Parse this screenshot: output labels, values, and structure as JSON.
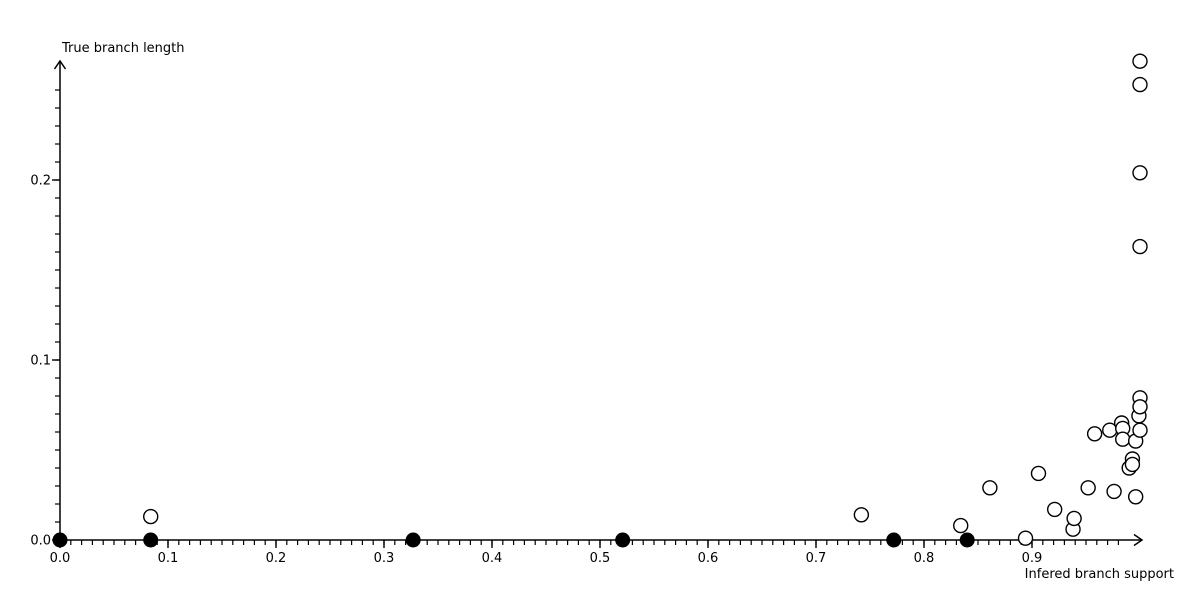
{
  "page": {
    "background_color": "#ffffff",
    "axis_color": "#000000",
    "text_color": "#000000"
  },
  "chart_data": {
    "type": "scatter",
    "title": "",
    "xlabel": "Infered branch support",
    "ylabel": "True branch length",
    "xlim": [
      0,
      1.005
    ],
    "ylim": [
      0,
      0.27
    ],
    "grid": false,
    "legend": "none",
    "x_major_ticks": [
      {
        "v": 0.0,
        "label": "0.0"
      },
      {
        "v": 0.1,
        "label": "0.1"
      },
      {
        "v": 0.2,
        "label": "0.2"
      },
      {
        "v": 0.3,
        "label": "0.3"
      },
      {
        "v": 0.4,
        "label": "0.4"
      },
      {
        "v": 0.5,
        "label": "0.5"
      },
      {
        "v": 0.6,
        "label": "0.6"
      },
      {
        "v": 0.7,
        "label": "0.7"
      },
      {
        "v": 0.8,
        "label": "0.8"
      },
      {
        "v": 0.9,
        "label": "0.9"
      }
    ],
    "y_major_ticks": [
      {
        "v": 0.0,
        "label": "0.0"
      },
      {
        "v": 0.1,
        "label": "0.1"
      },
      {
        "v": 0.2,
        "label": "0.2"
      }
    ],
    "x_minor_tick_step": 0.01,
    "x_minor_tick_max": 0.98,
    "y_minor_tick_step": 0.01,
    "y_minor_tick_max": 0.25,
    "series": [
      {
        "name": "filled-points-on-axis",
        "marker": "filled-circle",
        "fill": "#000000",
        "stroke": "#000000",
        "points": [
          [
            0.0,
            0.0
          ],
          [
            0.084,
            0.0
          ],
          [
            0.327,
            0.0
          ],
          [
            0.521,
            0.0
          ],
          [
            0.772,
            0.0
          ],
          [
            0.84,
            0.0
          ]
        ]
      },
      {
        "name": "open-points",
        "marker": "open-circle",
        "fill": "#ffffff",
        "stroke": "#000000",
        "points": [
          [
            0.084,
            0.013
          ],
          [
            0.742,
            0.014
          ],
          [
            0.834,
            0.008
          ],
          [
            0.861,
            0.029
          ],
          [
            0.894,
            0.001
          ],
          [
            0.906,
            0.037
          ],
          [
            0.921,
            0.017
          ],
          [
            0.938,
            0.006
          ],
          [
            0.939,
            0.012
          ],
          [
            0.952,
            0.029
          ],
          [
            0.958,
            0.059
          ],
          [
            0.972,
            0.061
          ],
          [
            0.976,
            0.027
          ],
          [
            0.983,
            0.065
          ],
          [
            0.984,
            0.062
          ],
          [
            0.984,
            0.056
          ],
          [
            0.99,
            0.04
          ],
          [
            0.993,
            0.045
          ],
          [
            0.993,
            0.042
          ],
          [
            0.996,
            0.055
          ],
          [
            0.996,
            0.024
          ],
          [
            0.999,
            0.069
          ],
          [
            1.0,
            0.079
          ],
          [
            1.0,
            0.074
          ],
          [
            1.0,
            0.061
          ],
          [
            1.0,
            0.163
          ],
          [
            1.0,
            0.204
          ],
          [
            1.0,
            0.253
          ],
          [
            1.0,
            0.266
          ]
        ]
      }
    ]
  }
}
